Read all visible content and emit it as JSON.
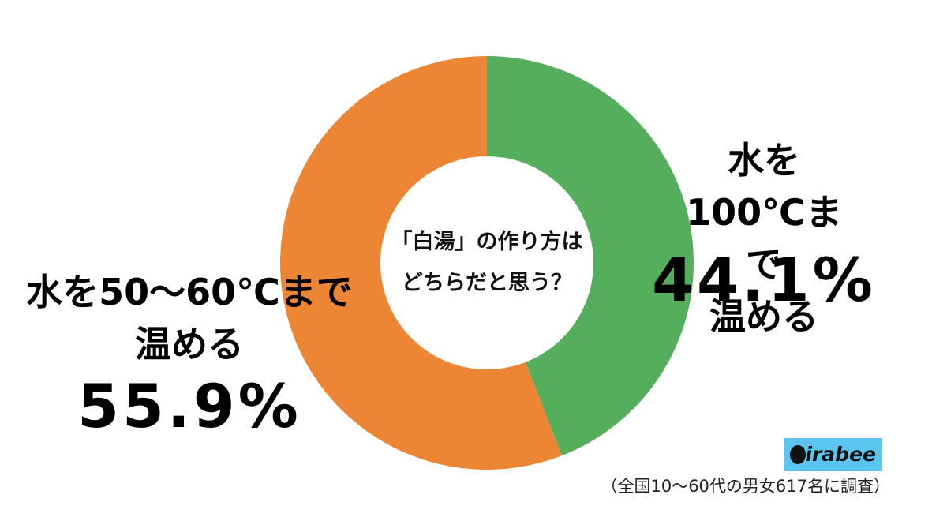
{
  "chart_data": {
    "type": "pie",
    "donut": true,
    "center_text": "「白湯」の作り方は\nどちらだと思う？",
    "categories": [
      "水を100℃まで\n温める",
      "水を50～60℃まで\n温める"
    ],
    "values": [
      44.1,
      55.9
    ],
    "value_labels": [
      "44.1%",
      "55.9%"
    ],
    "colors": [
      "#55ae5b",
      "#ed8634"
    ],
    "logo": "Sirabee",
    "footnote": "（全国10～60代の男女617名に調査）"
  }
}
